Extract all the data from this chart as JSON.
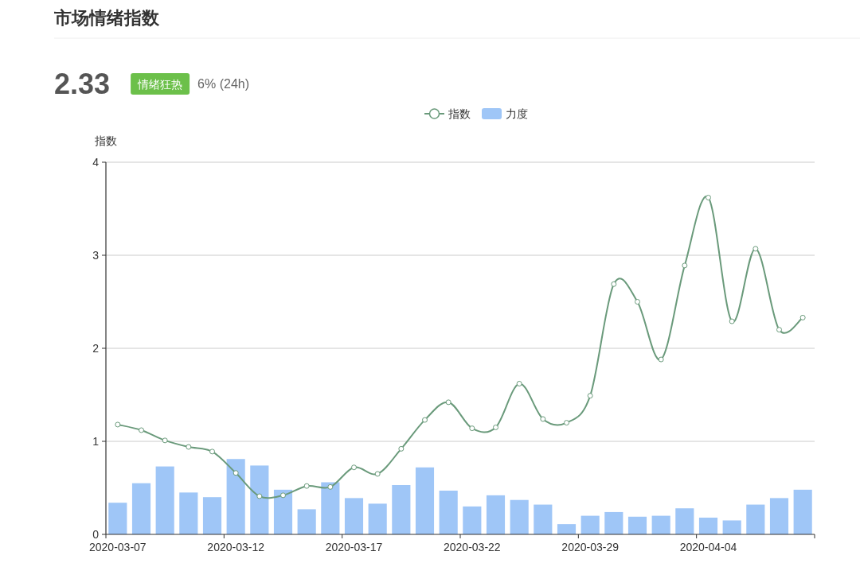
{
  "chart_data": {
    "type": "bar",
    "title": "市场情绪指数",
    "ylabel": "指数",
    "annotations": [
      "2.33",
      "情绪狂热",
      "6% (24h)"
    ],
    "categories": [
      "2020-03-07",
      null,
      null,
      null,
      null,
      "2020-03-12",
      null,
      null,
      null,
      null,
      "2020-03-17",
      null,
      null,
      null,
      null,
      "2020-03-22",
      null,
      null,
      null,
      null,
      "2020-03-29",
      null,
      null,
      null,
      null,
      "2020-04-04",
      null,
      null,
      null,
      null
    ],
    "series": [
      {
        "name": "指数",
        "type": "line",
        "color": "#6a9a7b",
        "values": [
          1.18,
          1.12,
          1.01,
          0.94,
          0.89,
          0.66,
          0.41,
          0.42,
          0.52,
          0.51,
          0.72,
          0.65,
          0.92,
          1.23,
          1.42,
          1.14,
          1.15,
          1.62,
          1.24,
          1.2,
          1.49,
          2.69,
          2.5,
          1.88,
          2.89,
          3.62,
          2.29,
          3.07,
          2.2,
          2.33
        ]
      },
      {
        "name": "力度",
        "color": "#9fc6f7",
        "values": [
          0.34,
          0.55,
          0.73,
          0.45,
          0.4,
          0.81,
          0.74,
          0.48,
          0.27,
          0.56,
          0.39,
          0.33,
          0.53,
          0.72,
          0.47,
          0.3,
          0.42,
          0.37,
          0.32,
          0.11,
          0.2,
          0.24,
          0.19,
          0.2,
          0.28,
          0.18,
          0.15,
          0.32,
          0.39,
          0.48
        ]
      }
    ],
    "ylim": [
      0,
      4
    ],
    "yticks": [
      0,
      1,
      2,
      3,
      4
    ],
    "grid": "y",
    "legend": "top",
    "marker": "circle"
  }
}
